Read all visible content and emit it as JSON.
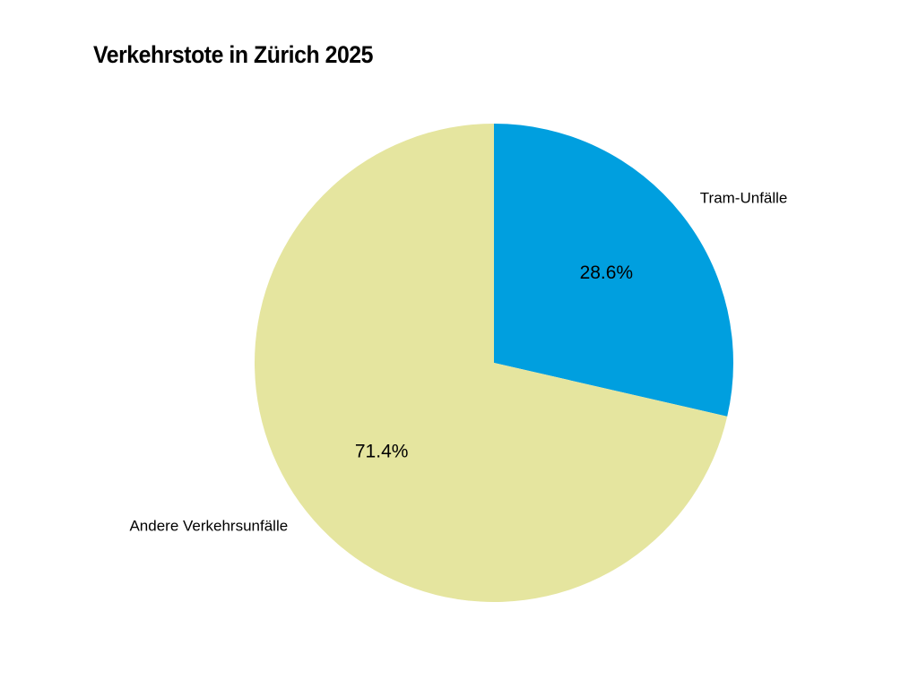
{
  "chart_data": {
    "type": "pie",
    "title": "Verkehrstote in Zürich 2025",
    "slices": [
      {
        "label": "Tram-Unfälle",
        "value": 28.6,
        "display": "28.6%",
        "color": "#009fdf"
      },
      {
        "label": "Andere Verkehrsunfälle",
        "value": 71.4,
        "display": "71.4%",
        "color": "#e5e59f"
      }
    ],
    "start": "12 o'clock",
    "direction": "clockwise",
    "legend": "none"
  }
}
